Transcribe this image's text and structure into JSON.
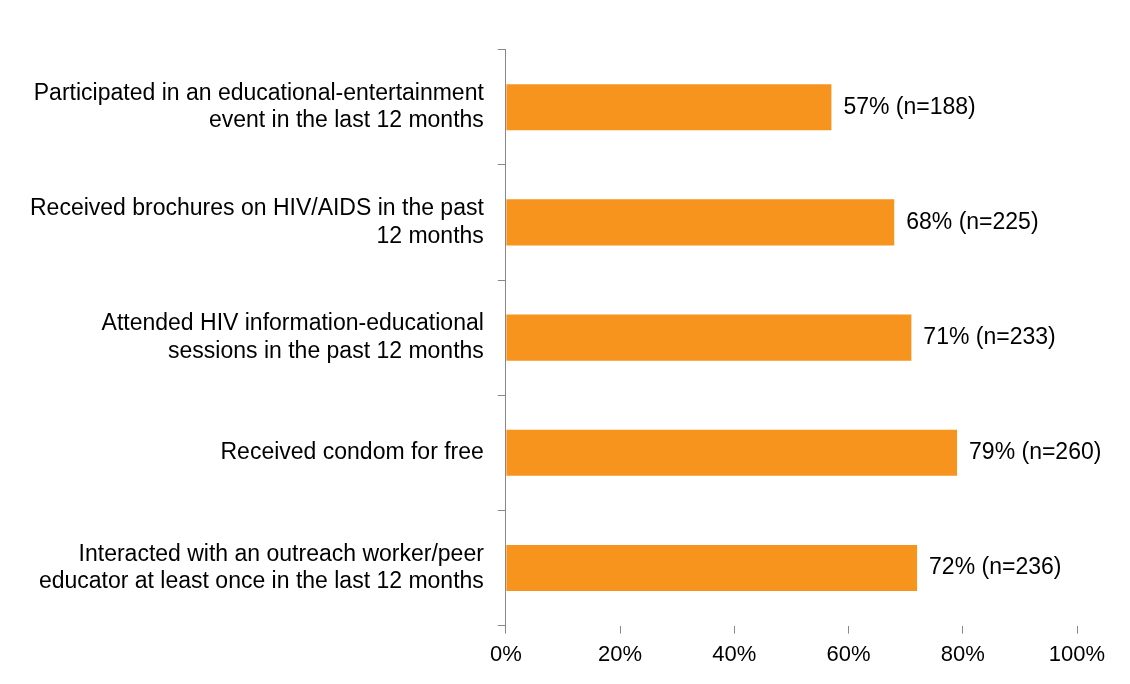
{
  "chart_data": {
    "type": "bar",
    "orientation": "horizontal",
    "categories": [
      "Participated in an educational-entertainment event in the last 12 months",
      "Received brochures on HIV/AIDS in the past 12 months",
      "Attended HIV information-educational sessions in the past 12 months",
      "Received condom for free",
      "Interacted with an outreach worker/peer educator at least once in the last 12 months"
    ],
    "values": [
      57,
      68,
      71,
      79,
      72
    ],
    "value_labels": [
      "57% (n=188)",
      "68% (n=225)",
      "71% (n=233)",
      "79% (n=260)",
      "72% (n=236)"
    ],
    "color": "#f7941d",
    "xlim": [
      0,
      100
    ],
    "xticks": [
      {
        "value": 0,
        "label": "0%"
      },
      {
        "value": 20,
        "label": "20%"
      },
      {
        "value": 40,
        "label": "40%"
      },
      {
        "value": 60,
        "label": "60%"
      },
      {
        "value": 80,
        "label": "80%"
      },
      {
        "value": 100,
        "label": "100%"
      }
    ],
    "grid": false,
    "legend": false
  }
}
